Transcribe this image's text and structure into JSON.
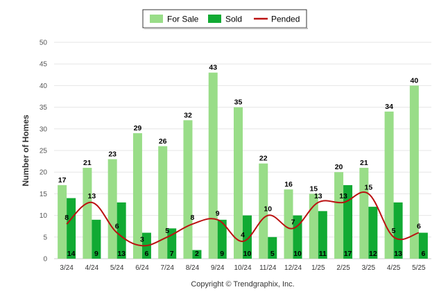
{
  "chart_data": {
    "type": "bar",
    "categories": [
      "3/24",
      "4/24",
      "5/24",
      "6/24",
      "7/24",
      "8/24",
      "9/24",
      "10/24",
      "11/24",
      "12/24",
      "1/25",
      "2/25",
      "3/25",
      "4/25",
      "5/25"
    ],
    "series": [
      {
        "name": "For Sale",
        "type": "bar",
        "color": "#99dd88",
        "values": [
          17,
          21,
          23,
          29,
          26,
          32,
          43,
          35,
          22,
          16,
          15,
          20,
          21,
          34,
          40
        ]
      },
      {
        "name": "Sold",
        "type": "bar",
        "color": "#11aa33",
        "values": [
          14,
          9,
          13,
          6,
          7,
          2,
          9,
          10,
          5,
          10,
          11,
          17,
          12,
          13,
          6
        ]
      },
      {
        "name": "Pended",
        "type": "line",
        "color": "#bb1111",
        "values": [
          8,
          13,
          6,
          3,
          5,
          8,
          9,
          4,
          10,
          7,
          13,
          13,
          15,
          5,
          6
        ]
      }
    ],
    "title": "",
    "xlabel": "",
    "ylabel": "Number of Homes",
    "ylim": [
      0,
      50
    ],
    "yticks": [
      0,
      5,
      10,
      15,
      20,
      25,
      30,
      35,
      40,
      45,
      50
    ],
    "grid": true,
    "legend_position": "top-center"
  },
  "footer": {
    "copyright": "Copyright © Trendgraphix, Inc."
  }
}
